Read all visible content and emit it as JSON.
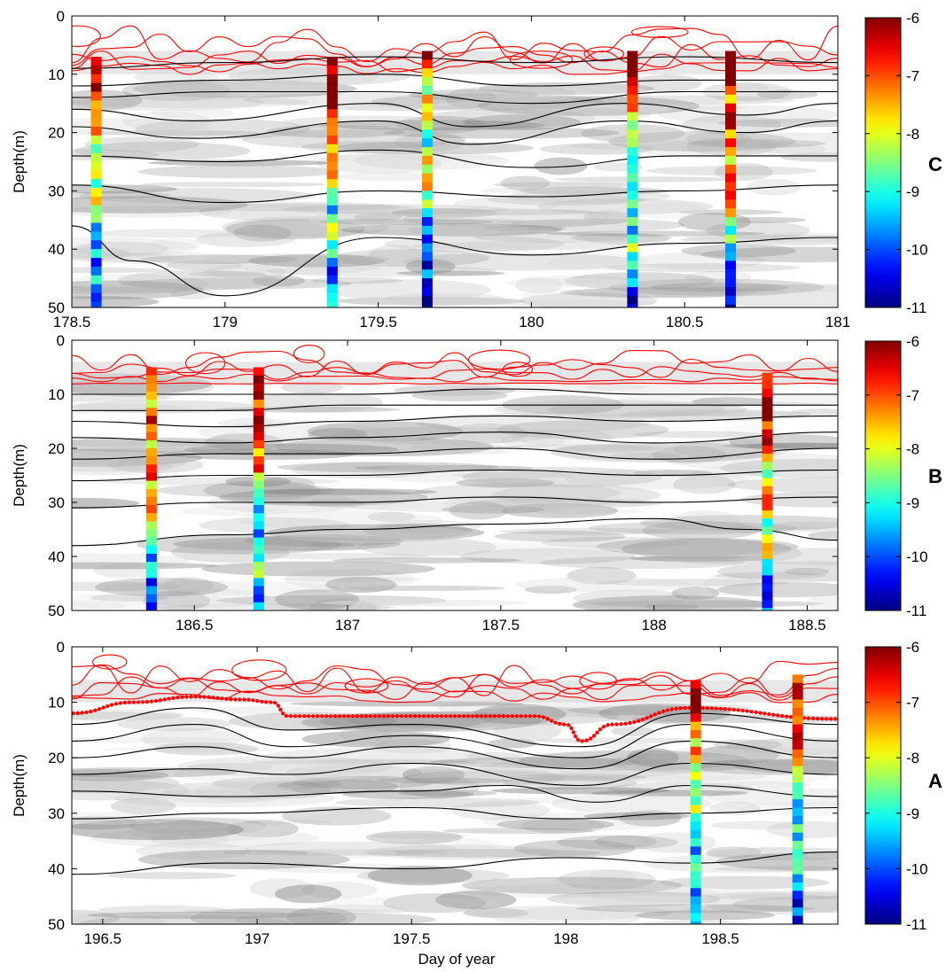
{
  "figure": {
    "xlabel": "Day of year",
    "ylabel": "Depth(m)",
    "colormap": "jet",
    "colorbar_range": [
      -11,
      -6
    ],
    "colorbar_ticks": [
      "-6",
      "-7",
      "-8",
      "-9",
      "-10",
      "-11"
    ]
  },
  "chart_data": [
    {
      "type": "heatmap",
      "panel_label": "C",
      "ylabel": "Depth(m)",
      "xlim": [
        178.5,
        181.0
      ],
      "ylim": [
        0,
        50
      ],
      "y_inverted": true,
      "xtick_labels": [
        "178.5",
        "179",
        "179.5",
        "180",
        "180.5",
        "181"
      ],
      "ytick_labels": [
        "0",
        "10",
        "20",
        "30",
        "40",
        "50"
      ],
      "profile_days": [
        178.58,
        179.35,
        179.66,
        180.33,
        180.65
      ],
      "profile_top_depths": [
        7,
        7,
        6,
        6,
        6
      ],
      "black_isolines_depth": [
        {
          "x": [
            178.5,
            179.0,
            179.5,
            180.0,
            180.5,
            181.0
          ],
          "y": [
            9,
            8,
            7,
            8,
            7,
            8
          ]
        },
        {
          "x": [
            178.5,
            179.0,
            179.5,
            180.0,
            180.5,
            181.0
          ],
          "y": [
            12,
            11,
            10,
            12,
            11,
            11
          ]
        },
        {
          "x": [
            178.5,
            179.0,
            179.5,
            180.0,
            180.5,
            181.0
          ],
          "y": [
            14,
            13,
            13,
            15,
            13,
            13
          ]
        },
        {
          "x": [
            178.5,
            178.9,
            179.5,
            179.8,
            180.3,
            180.7,
            181.0
          ],
          "y": [
            16,
            18,
            15,
            19,
            15,
            17,
            15
          ]
        },
        {
          "x": [
            178.5,
            178.9,
            179.5,
            179.8,
            180.3,
            180.7,
            181.0
          ],
          "y": [
            19,
            21,
            18,
            22,
            18,
            20,
            18
          ]
        },
        {
          "x": [
            178.5,
            179.0,
            179.5,
            180.0,
            180.5,
            181.0
          ],
          "y": [
            24,
            25,
            23,
            26,
            24,
            24
          ]
        },
        {
          "x": [
            178.5,
            179.0,
            179.5,
            180.0,
            180.5,
            181.0
          ],
          "y": [
            29,
            32,
            30,
            31,
            30,
            29
          ]
        },
        {
          "x": [
            178.5,
            178.7,
            179.0,
            179.5,
            180.0,
            180.5,
            181.0
          ],
          "y": [
            36,
            42,
            48,
            38,
            41,
            39,
            38
          ]
        }
      ],
      "red_isolines_depth_max": 10
    },
    {
      "type": "heatmap",
      "panel_label": "B",
      "ylabel": "Depth(m)",
      "xlim": [
        186.1,
        188.6
      ],
      "ylim": [
        0,
        50
      ],
      "y_inverted": true,
      "xtick_labels": [
        "186.5",
        "187",
        "187.5",
        "188",
        "188.5"
      ],
      "xtick_values": [
        186.5,
        187.0,
        187.5,
        188.0,
        188.5
      ],
      "ytick_labels": [
        "0",
        "10",
        "20",
        "30",
        "40",
        "50"
      ],
      "profile_days": [
        186.36,
        186.71,
        188.37
      ],
      "profile_top_depths": [
        5,
        5,
        6
      ],
      "black_isolines_depth": [
        {
          "x": [
            186.1,
            186.6,
            187.0,
            187.5,
            188.0,
            188.6
          ],
          "y": [
            10,
            10,
            10,
            9,
            10,
            10
          ]
        },
        {
          "x": [
            186.1,
            186.6,
            187.0,
            187.5,
            188.0,
            188.6
          ],
          "y": [
            13,
            13,
            12,
            12,
            12,
            12
          ]
        },
        {
          "x": [
            186.1,
            186.6,
            187.0,
            187.5,
            188.0,
            188.6
          ],
          "y": [
            15,
            16,
            15,
            14,
            15,
            14
          ]
        },
        {
          "x": [
            186.1,
            186.6,
            187.0,
            187.5,
            188.0,
            188.6
          ],
          "y": [
            18,
            19,
            18,
            17,
            19,
            17
          ]
        },
        {
          "x": [
            186.1,
            186.6,
            187.0,
            187.5,
            188.0,
            188.6
          ],
          "y": [
            22,
            21,
            21,
            20,
            22,
            20
          ]
        },
        {
          "x": [
            186.1,
            186.6,
            187.0,
            187.5,
            188.0,
            188.6
          ],
          "y": [
            26,
            25,
            25,
            24,
            25,
            24
          ]
        },
        {
          "x": [
            186.1,
            186.6,
            187.0,
            187.5,
            188.0,
            188.6
          ],
          "y": [
            31,
            30,
            30,
            29,
            30,
            29
          ]
        },
        {
          "x": [
            186.1,
            186.6,
            187.0,
            187.5,
            188.0,
            188.3,
            188.6
          ],
          "y": [
            38,
            36,
            35,
            34,
            33,
            35,
            37
          ]
        }
      ],
      "red_isolines_depth_max": 8
    },
    {
      "type": "heatmap",
      "panel_label": "A",
      "ylabel": "Depth(m)",
      "xlabel": "Day of year",
      "xlim": [
        196.4,
        198.88
      ],
      "ylim": [
        0,
        50
      ],
      "y_inverted": true,
      "xtick_labels": [
        "196.5",
        "197",
        "197.5",
        "198",
        "198.5"
      ],
      "xtick_values": [
        196.5,
        197.0,
        197.5,
        198.0,
        198.5
      ],
      "ytick_labels": [
        "0",
        "10",
        "20",
        "30",
        "40",
        "50"
      ],
      "profile_days": [
        198.42,
        198.75
      ],
      "profile_top_depths": [
        6,
        5
      ],
      "mixed_layer_depth": {
        "x": [
          196.4,
          196.6,
          196.8,
          196.95,
          197.05,
          197.1,
          197.5,
          197.9,
          198.0,
          198.05,
          198.15,
          198.4,
          198.88
        ],
        "y": [
          12,
          10,
          9,
          9.5,
          10,
          12.5,
          12.5,
          12.5,
          14,
          17,
          14,
          11,
          13
        ]
      },
      "black_isolines_depth": [
        {
          "x": [
            196.4,
            196.8,
            197.1,
            197.5,
            198.05,
            198.4,
            198.88
          ],
          "y": [
            14,
            11,
            15,
            14,
            18,
            12,
            14
          ]
        },
        {
          "x": [
            196.4,
            196.8,
            197.1,
            197.5,
            198.05,
            198.4,
            198.88
          ],
          "y": [
            17,
            14,
            18,
            16,
            20,
            14,
            17
          ]
        },
        {
          "x": [
            196.4,
            196.8,
            197.1,
            197.5,
            198.05,
            198.4,
            198.88
          ],
          "y": [
            20,
            18,
            20,
            18,
            22,
            17,
            20
          ]
        },
        {
          "x": [
            196.4,
            196.8,
            197.1,
            197.5,
            198.05,
            198.4,
            198.88
          ],
          "y": [
            23,
            22,
            23,
            21,
            25,
            21,
            23
          ]
        },
        {
          "x": [
            196.4,
            196.9,
            197.5,
            197.8,
            198.1,
            198.4,
            198.88
          ],
          "y": [
            26,
            27,
            26,
            25,
            28,
            25,
            27
          ]
        },
        {
          "x": [
            196.4,
            196.9,
            197.5,
            198.0,
            198.4,
            198.88
          ],
          "y": [
            31,
            30,
            29,
            31,
            30,
            29
          ]
        },
        {
          "x": [
            196.4,
            196.9,
            197.5,
            198.0,
            198.4,
            198.88
          ],
          "y": [
            41,
            39,
            40,
            38,
            39,
            37
          ]
        }
      ],
      "red_isolines_depth_max": 10
    }
  ]
}
